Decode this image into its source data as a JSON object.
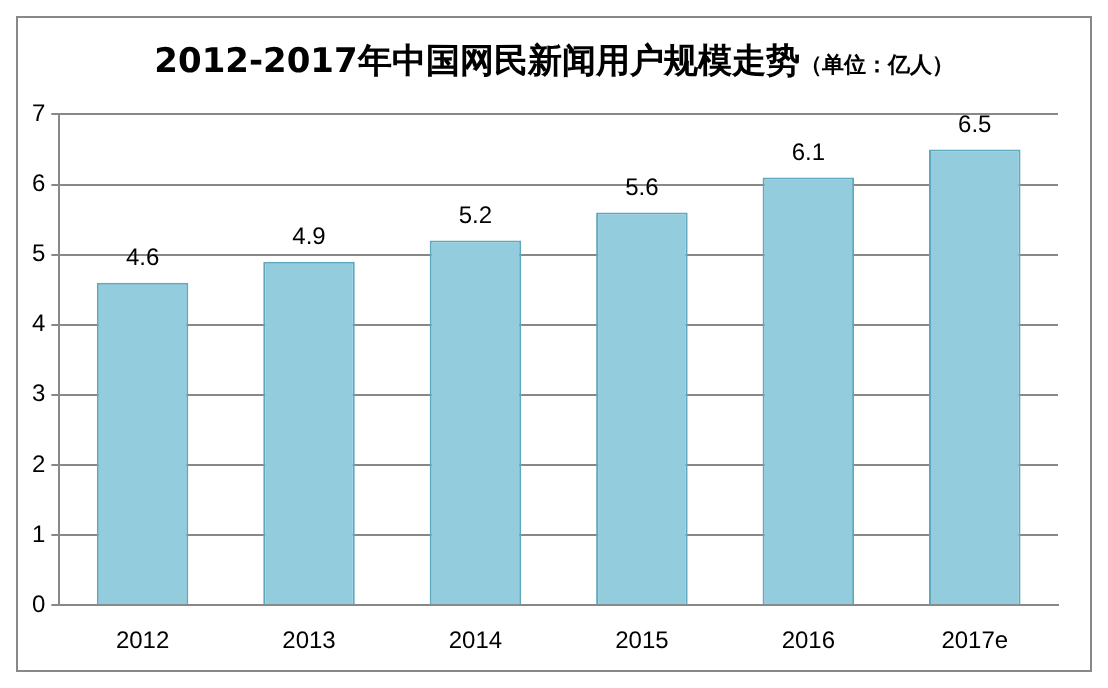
{
  "chart_data": {
    "type": "bar",
    "title": "2012-2017年中国网民新闻用户规模走势",
    "subtitle": "（单位：亿人）",
    "categories": [
      "2012",
      "2013",
      "2014",
      "2015",
      "2016",
      "2017e"
    ],
    "values": [
      4.6,
      4.9,
      5.2,
      5.6,
      6.1,
      6.5
    ],
    "color": "#93cddd",
    "ylim": [
      0,
      7
    ],
    "yticks": [
      0,
      1,
      2,
      3,
      4,
      5,
      6,
      7
    ],
    "grid": "y",
    "data_labels": true,
    "legend": false
  }
}
